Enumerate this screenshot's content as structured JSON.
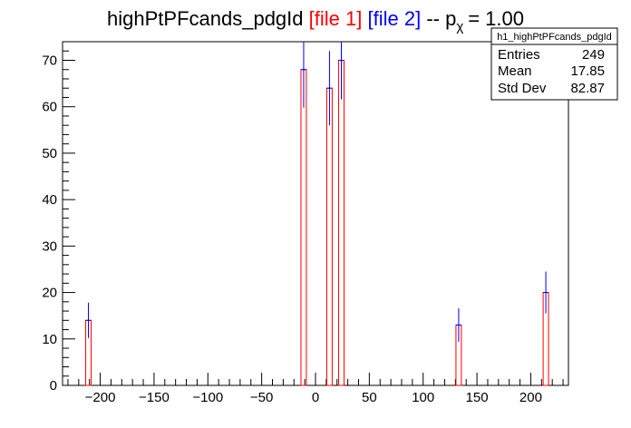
{
  "chart_data": {
    "type": "bar",
    "title": {
      "name": "highPtPFcands_pdgId",
      "file1": "[file 1]",
      "file2": "[file 2]",
      "suffix_prefix": "-- p",
      "suffix_sub": "χ",
      "suffix_value": "= 1.00"
    },
    "xlim": [
      -235,
      235
    ],
    "ylim": [
      0,
      74
    ],
    "xticks": [
      -200,
      -150,
      -100,
      -50,
      0,
      50,
      100,
      150,
      200
    ],
    "xtick_labels": [
      "−200",
      "−150",
      "−100",
      "−50",
      "0",
      "50",
      "100",
      "150",
      "200"
    ],
    "yticks": [
      0,
      10,
      20,
      30,
      40,
      50,
      60,
      70
    ],
    "yticks_minor_step": 2,
    "xticks_minor_step": 10,
    "bin_width": 5,
    "series": [
      {
        "name": "file 1",
        "color": "#ff0000",
        "bins": [
          {
            "x": -211,
            "value": 14
          },
          {
            "x": -11,
            "value": 68
          },
          {
            "x": 13,
            "value": 64
          },
          {
            "x": 24,
            "value": 70
          },
          {
            "x": 133,
            "value": 13
          },
          {
            "x": 214,
            "value": 20
          }
        ]
      },
      {
        "name": "file 2",
        "color": "#0000ff",
        "points": [
          {
            "x": -211,
            "value": 14,
            "err": 3.8
          },
          {
            "x": -11,
            "value": 68,
            "err": 8.2
          },
          {
            "x": 13,
            "value": 64,
            "err": 8.0
          },
          {
            "x": 24,
            "value": 70,
            "err": 8.4
          },
          {
            "x": 133,
            "value": 13,
            "err": 3.6
          },
          {
            "x": 214,
            "value": 20,
            "err": 4.5
          }
        ]
      }
    ],
    "stats": {
      "title": "h1_highPtPFcands_pdgId",
      "rows": [
        {
          "label": "Entries",
          "value": "249"
        },
        {
          "label": "Mean",
          "value": "17.85"
        },
        {
          "label": "Std Dev",
          "value": "82.87"
        }
      ]
    }
  }
}
